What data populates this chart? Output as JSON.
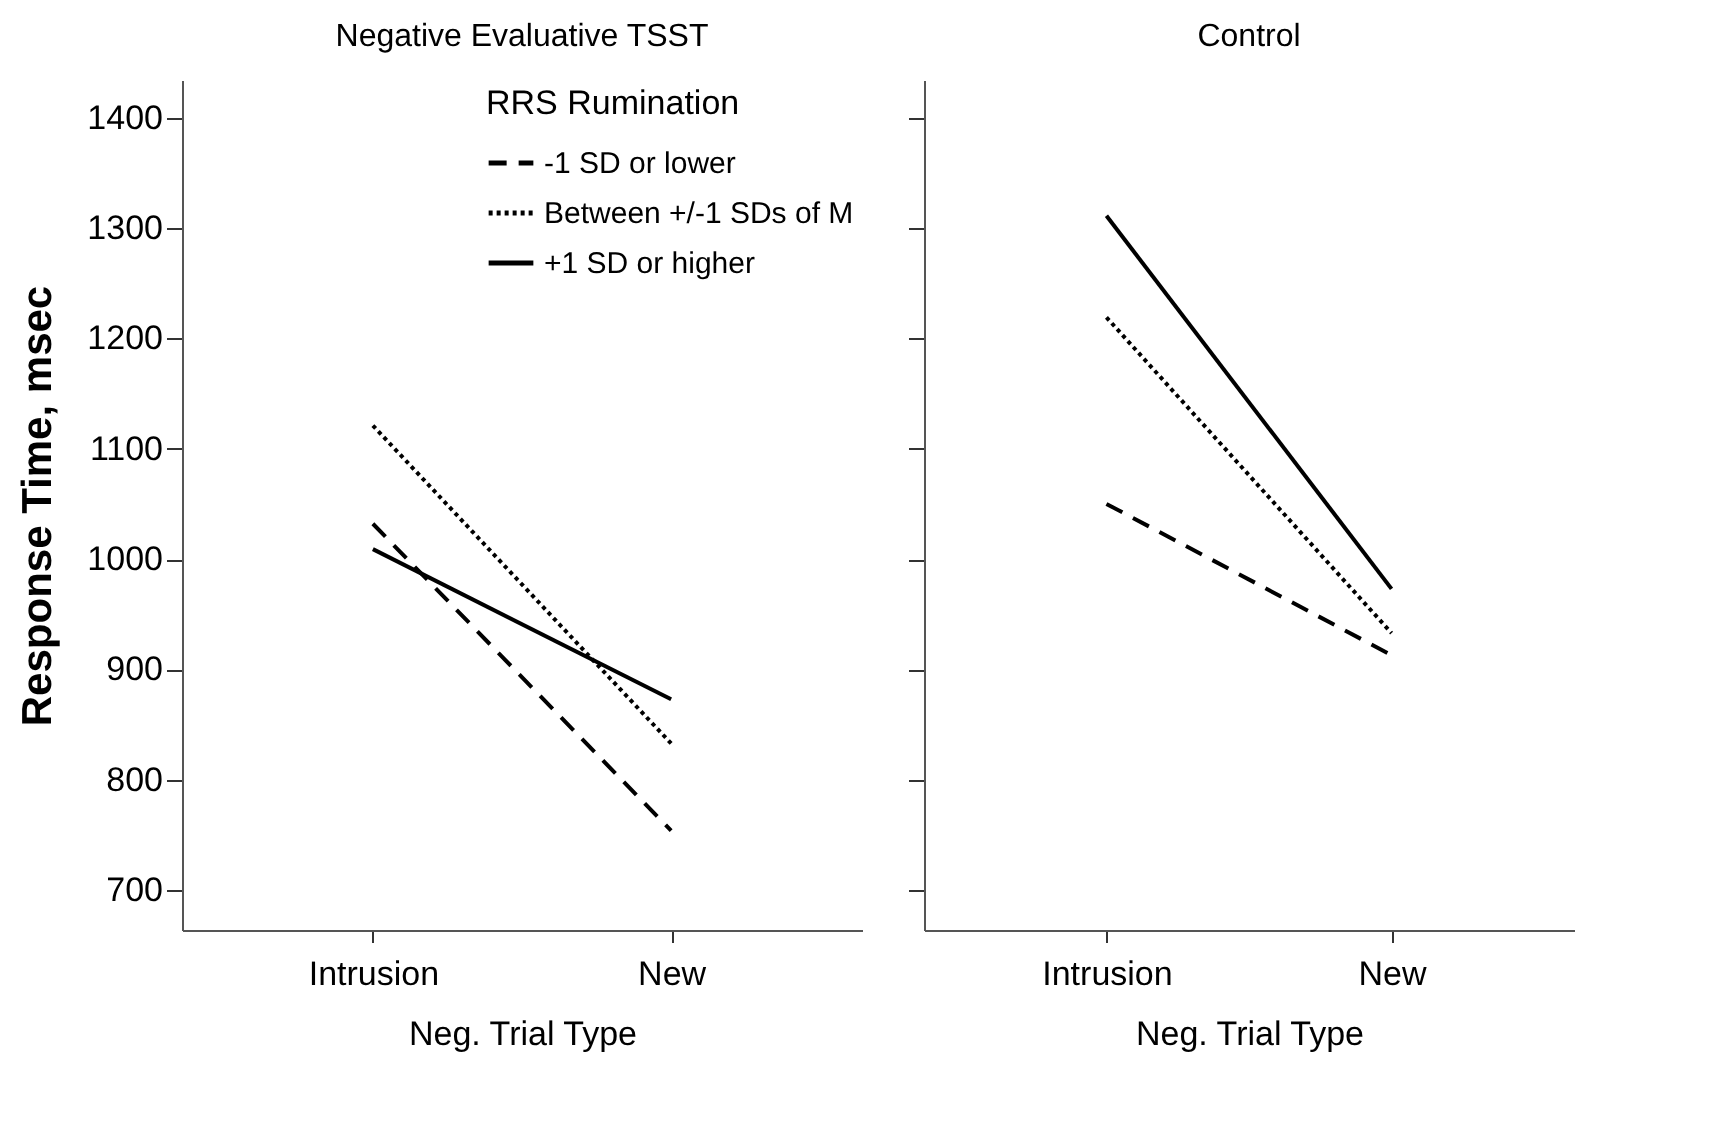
{
  "chart_data": [
    {
      "type": "line",
      "title": "Negative Evaluative TSST",
      "xlabel": "Neg. Trial Type",
      "ylabel": "Response Time, msec",
      "legend_title": "RRS Rumination",
      "legend": "top right",
      "categories": [
        "Intrusion",
        "New"
      ],
      "ylim": [
        664,
        1434
      ],
      "yticks": [
        700,
        800,
        900,
        1000,
        1100,
        1200,
        1300,
        1400
      ],
      "series": [
        {
          "name": "-1 SD or lower",
          "color": "#000000",
          "line_style": "dashed",
          "values": [
            1032,
            754
          ]
        },
        {
          "name": "Between +/-1 SDs of M",
          "color": "#000000",
          "line_style": "dotted",
          "values": [
            1121,
            833
          ]
        },
        {
          "name": "+1 SD or higher",
          "color": "#000000",
          "line_style": "solid",
          "values": [
            1009,
            873
          ]
        }
      ]
    },
    {
      "type": "line",
      "title": "Control",
      "xlabel": "Neg. Trial Type",
      "categories": [
        "Intrusion",
        "New"
      ],
      "ylim": [
        664,
        1434
      ],
      "yticks": [
        700,
        800,
        900,
        1000,
        1100,
        1200,
        1300,
        1400
      ],
      "tick_labels": "x",
      "series": [
        {
          "color": "#000000",
          "line_style": "dashed",
          "values": [
            1050,
            913
          ]
        },
        {
          "color": "#000000",
          "line_style": "dotted",
          "values": [
            1219,
            933
          ]
        },
        {
          "color": "#000000",
          "line_style": "solid",
          "values": [
            1311,
            973
          ]
        }
      ]
    }
  ]
}
